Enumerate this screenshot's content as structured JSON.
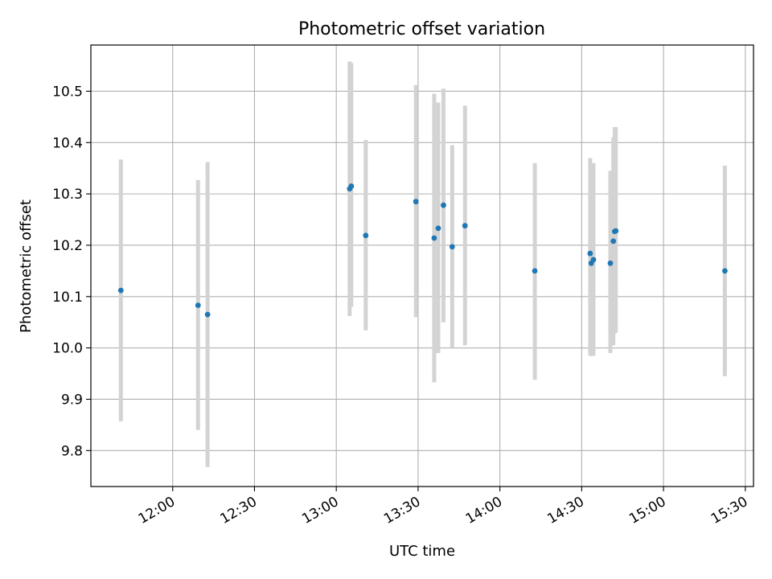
{
  "chart_data": {
    "type": "scatter",
    "title": "Photometric offset variation",
    "xlabel": "UTC time",
    "ylabel": "Photometric offset",
    "xlim": [
      "11:30",
      "15:33"
    ],
    "ylim": [
      9.73,
      10.59
    ],
    "x_ticks": [
      "12:00",
      "12:30",
      "13:00",
      "13:30",
      "14:00",
      "14:30",
      "15:00",
      "15:30"
    ],
    "y_ticks": [
      9.8,
      9.9,
      10.0,
      10.1,
      10.2,
      10.3,
      10.4,
      10.5
    ],
    "grid": true,
    "colors": {
      "point": "#1f77b4",
      "errorbar": "#d3d3d3",
      "grid": "#b0b0b0"
    },
    "points": [
      {
        "x": "11:41:00",
        "y": 10.112,
        "y_low": 9.857,
        "y_high": 10.367
      },
      {
        "x": "12:09:18",
        "y": 10.083,
        "y_low": 9.84,
        "y_high": 10.327
      },
      {
        "x": "12:12:48",
        "y": 10.065,
        "y_low": 9.768,
        "y_high": 10.362
      },
      {
        "x": "13:04:54",
        "y": 10.31,
        "y_low": 10.062,
        "y_high": 10.558
      },
      {
        "x": "13:05:30",
        "y": 10.315,
        "y_low": 10.08,
        "y_high": 10.555
      },
      {
        "x": "13:10:48",
        "y": 10.219,
        "y_low": 10.034,
        "y_high": 10.405
      },
      {
        "x": "13:29:12",
        "y": 10.285,
        "y_low": 10.06,
        "y_high": 10.512
      },
      {
        "x": "13:35:54",
        "y": 10.214,
        "y_low": 9.933,
        "y_high": 10.495
      },
      {
        "x": "13:37:24",
        "y": 10.233,
        "y_low": 9.99,
        "y_high": 10.478
      },
      {
        "x": "13:39:18",
        "y": 10.278,
        "y_low": 10.05,
        "y_high": 10.505
      },
      {
        "x": "13:42:30",
        "y": 10.197,
        "y_low": 10.0,
        "y_high": 10.395
      },
      {
        "x": "13:47:12",
        "y": 10.238,
        "y_low": 10.005,
        "y_high": 10.472
      },
      {
        "x": "14:12:48",
        "y": 10.15,
        "y_low": 9.938,
        "y_high": 10.36
      },
      {
        "x": "14:33:06",
        "y": 10.184,
        "y_low": 9.986,
        "y_high": 10.37
      },
      {
        "x": "14:33:30",
        "y": 10.165,
        "y_low": 9.984,
        "y_high": 10.358
      },
      {
        "x": "14:34:18",
        "y": 10.172,
        "y_low": 9.985,
        "y_high": 10.36
      },
      {
        "x": "14:40:30",
        "y": 10.165,
        "y_low": 9.99,
        "y_high": 10.345
      },
      {
        "x": "14:41:36",
        "y": 10.208,
        "y_low": 10.005,
        "y_high": 10.41
      },
      {
        "x": "14:42:06",
        "y": 10.227,
        "y_low": 10.028,
        "y_high": 10.43
      },
      {
        "x": "14:42:30",
        "y": 10.228,
        "y_low": 10.03,
        "y_high": 10.43
      },
      {
        "x": "15:22:30",
        "y": 10.15,
        "y_low": 9.945,
        "y_high": 10.355
      }
    ]
  }
}
